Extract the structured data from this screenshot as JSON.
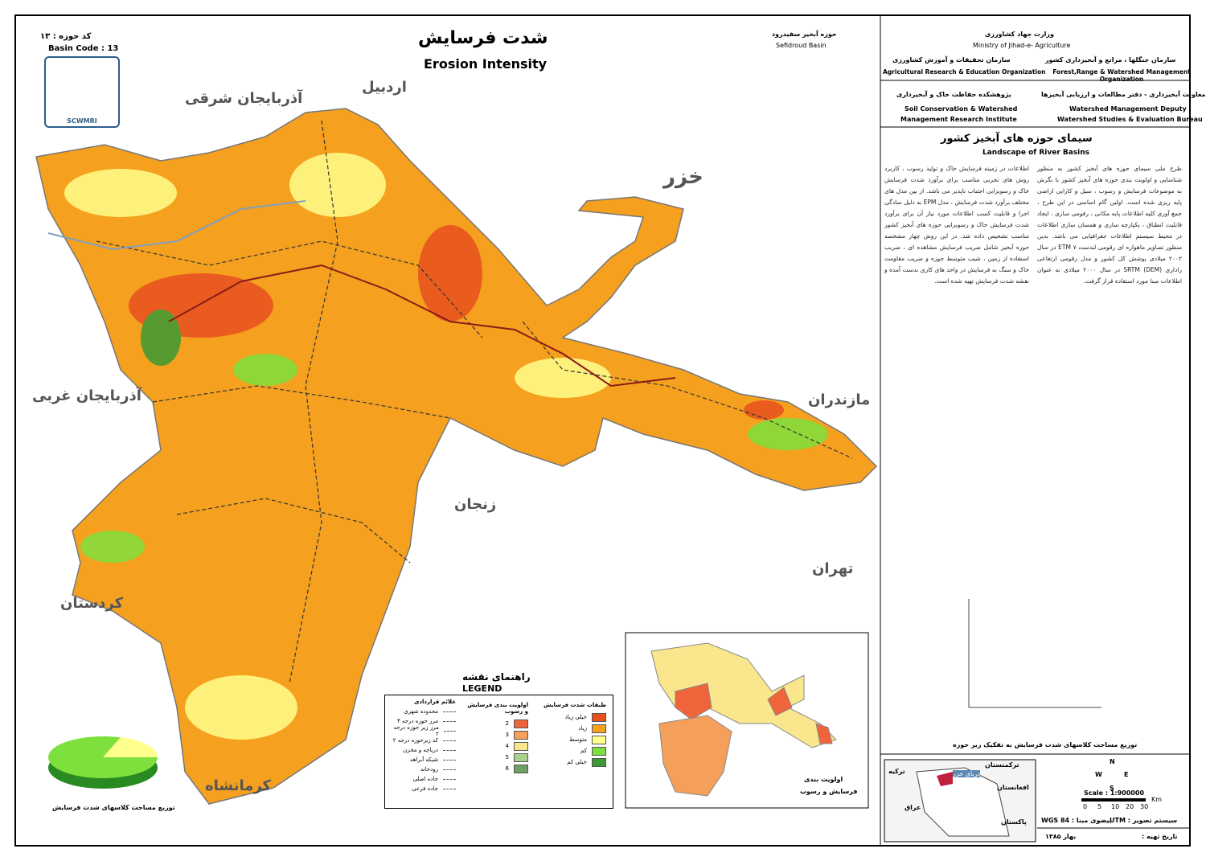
{
  "header": {
    "basin_code_fa": "کد حوزه : ۱۳",
    "basin_code_en": "Basin Code : 13",
    "logo_text": "SCWMRI",
    "title_fa": "شدت فرسایش",
    "title_en": "Erosion Intensity",
    "basin_fa": "حوزه آبخیز سفیدرود",
    "basin_en": "Sefidroud Basin"
  },
  "map_labels": [
    "اردبیل",
    "آذربایجان شرقی",
    "خزر",
    "آذربایجان غربی",
    "مازندران",
    "زنجان",
    "تهران",
    "کردستان",
    "کرمانشاه"
  ],
  "legend": {
    "title_fa": "راهنمای نقشه",
    "title_en": "LEGEND",
    "erosion": {
      "title": "طبقات شدت فرسایش",
      "classes": [
        {
          "label": "خیلی زیاد",
          "color": "#e8501e"
        },
        {
          "label": "زیاد",
          "color": "#f5a01e"
        },
        {
          "label": "متوسط",
          "color": "#ffff8c"
        },
        {
          "label": "کم",
          "color": "#7ee03c"
        },
        {
          "label": "خیلی کم",
          "color": "#3c9a32"
        }
      ]
    },
    "priority": {
      "title": "اولویت بندی فرسایش و رسوب",
      "classes": [
        {
          "label": "2",
          "color": "#f0643c"
        },
        {
          "label": "3",
          "color": "#f5a05a"
        },
        {
          "label": "4",
          "color": "#fae68c"
        },
        {
          "label": "5",
          "color": "#a8d28c"
        },
        {
          "label": "6",
          "color": "#6ea064"
        }
      ]
    },
    "symbols": {
      "title": "علائم قراردادی",
      "items": [
        "محدوده شهری",
        "مرز حوزه درجه ۴",
        "مرز زیر حوزه درجه ۲",
        "کد زیرحوزه درجه ۲",
        "دریاچه و مخزن",
        "شبکه آبراهه",
        "رودخانه",
        "جاده اصلی",
        "جاده فرعی"
      ]
    }
  },
  "pie_caption": "توزیع مساحت کلاسهای شدت فرسایش",
  "inset": {
    "caption_line1": "اولویت بندی",
    "caption_line2": "فرسایش و رسوب"
  },
  "side_panel": {
    "ministry_fa": "وزارت جهاد کشاورزی",
    "ministry_en": "Ministry of Jihad-e- Agriculture",
    "org1_fa": "سازمان جنگلها ، مراتع و آبخیزداری کشور",
    "org1_en": "Forest,Range & Watershed Management Organization",
    "org2_fa": "سازمان تحقیقات و آموزش کشاورزی",
    "org2_en": "Agricultural Research & Education Organization",
    "deputy_fa": "معاونت آبخیزداری - دفتر مطالعات و ارزیابی آبخیزها",
    "deputy_en1": "Watershed Management Deputy",
    "deputy_en2": "Watershed Studies & Evaluation Bureau",
    "inst_fa": "پژوهشکده حفاظت خاک و آبخیزداری",
    "inst_en1": "Soil Conservation & Watershed",
    "inst_en2": "Management Research Institute",
    "series_fa": "سیمای حوزه های آبخیز کشور",
    "series_en": "Landscape of River Basins",
    "text_right": "طرح ملی سیمای حوزه های آبخیز کشور به منظور شناسایی و اولویت بندی حوزه های آبخیز کشور با نگرش به موضوعات فرسایش و رسوب ، سیل و کارایی اراضی پایه ریزی شده است. اولین گام اساسی در این طرح ، جمع آوری کلیه اطلاعات پایه مکانی ، رقومی سازی ، ایجاد قابلیت انطباق ، یکپارچه سازی و همسان سازی اطلاعات در محیط سیستم اطلاعات جغرافیایی می باشد. بدین منظور تصاویر ماهواره ای رقومی لندست ۷ ETM در سال ۲۰۰۲ میلادی پوشش کل کشور و مدل رقومی ارتفاعی راداری (DEM) SRTM در سال ۲۰۰۰ میلادی به عنوان اطلاعات مبنا مورد استفاده قرار گرفت.",
    "text_left": "اطلاعات در زمینه فرسایش خاک و تولید رسوب ، کاربرد روش های تجربی مناسب برای برآورد شدت فرسایش خاک و رسوبزایی اجتناب ناپذیر می باشد. از بین مدل های مختلف برآورد شدت فرسایش ، مدل EPM به دلیل سادگی اجرا و قابلیت کسب اطلاعات مورد نیاز آن برای برآورد شدت فرسایش خاک و رسوبزایی حوزه های آبخیز کشور مناسب تشخیص داده شد. در این روش چهار مشخصه حوزه آبخیز شامل ضریب فرسایش مشاهده ای ، ضریب استفاده از زمین ، شیب متوسط حوزه و ضریب مقاومت خاک و سنگ به فرسایش در واحد های کاری بدست آمده و نقشه شدت فرسایش تهیه شده است.",
    "bar_caption": "توزیع مساحت کلاسهای شدت فرسایش به تفکیک زیر حوزه",
    "location_labels": [
      "ترکمنستان",
      "ترکیه",
      "دریای خزر",
      "عراق",
      "افغانستان",
      "پاکستان"
    ],
    "compass": [
      "N",
      "S",
      "E",
      "W"
    ],
    "scale": "Scale : 1:900000",
    "scale_ticks": [
      "0",
      "5",
      "10",
      "20",
      "30"
    ],
    "scale_unit": "Km",
    "projection": "سیستم تصویر : UTM",
    "datum": "بیضوی مبنا : WGS 84",
    "date_label": "تاریخ تهیه :",
    "date": "بهار ۱۳۸۵"
  }
}
